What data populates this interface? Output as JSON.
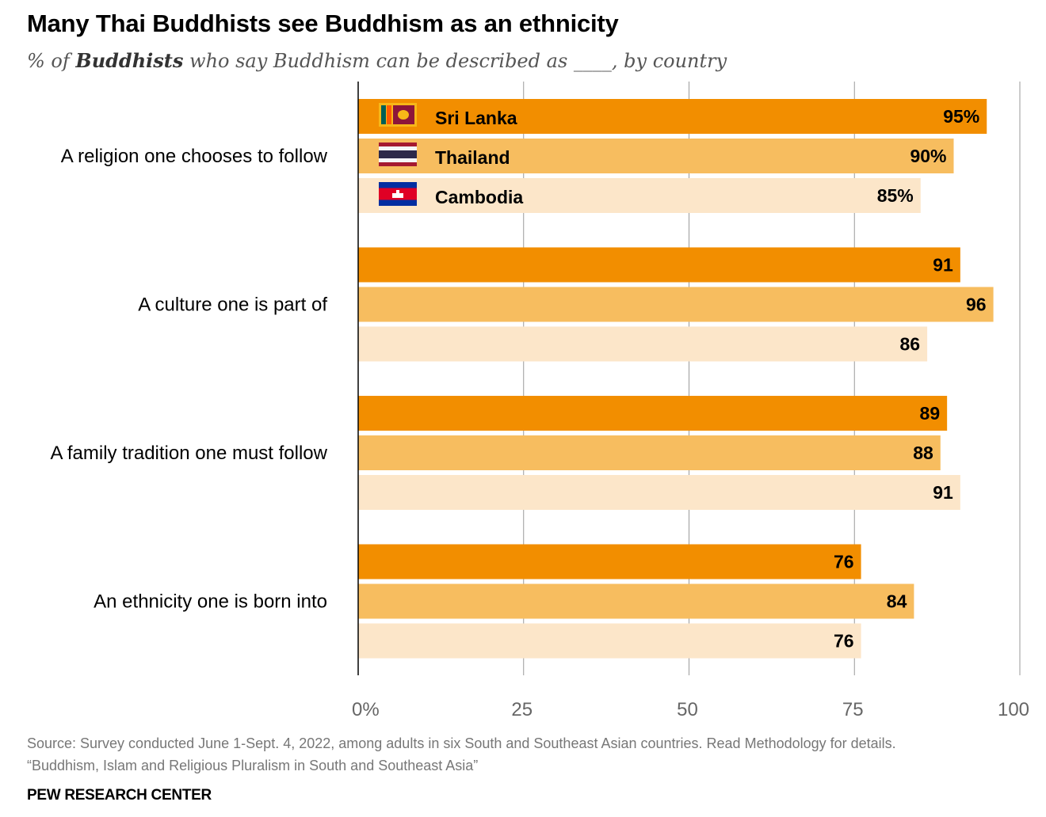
{
  "chart_data": {
    "type": "bar",
    "orientation": "horizontal",
    "title": "Many Thai Buddhists see Buddhism as an ethnicity",
    "subtitle": {
      "prefix": "% of ",
      "emphasis": "Buddhists",
      "suffix": " who say Buddhism can be described as ____, by country"
    },
    "categories": [
      "A religion one chooses to follow",
      "A culture one is part of",
      "A family tradition one must follow",
      "An ethnicity one is born into"
    ],
    "series": [
      {
        "name": "Sri Lanka",
        "color": "#f28e00",
        "flag": "sri-lanka-flag",
        "values": [
          95,
          91,
          89,
          76
        ]
      },
      {
        "name": "Thailand",
        "color": "#f7bd5f",
        "flag": "thailand-flag",
        "values": [
          90,
          96,
          88,
          84
        ]
      },
      {
        "name": "Cambodia",
        "color": "#fce6c9",
        "flag": "cambodia-flag",
        "values": [
          85,
          86,
          91,
          76
        ]
      }
    ],
    "first_row_suffix": "%",
    "xlim": [
      0,
      100
    ],
    "xticks": [
      0,
      25,
      50,
      75,
      100
    ],
    "xtick_labels": [
      "0%",
      "25",
      "50",
      "75",
      "100"
    ],
    "grid": true,
    "legend": "inside-bars-top"
  },
  "footer": {
    "source": "Source: Survey conducted June 1-Sept. 4, 2022, among adults in six South and Southeast Asian countries. Read Methodology for details.",
    "report": "“Buddhism, Islam and Religious Pluralism in South and Southeast Asia”",
    "brand": "PEW RESEARCH CENTER"
  }
}
